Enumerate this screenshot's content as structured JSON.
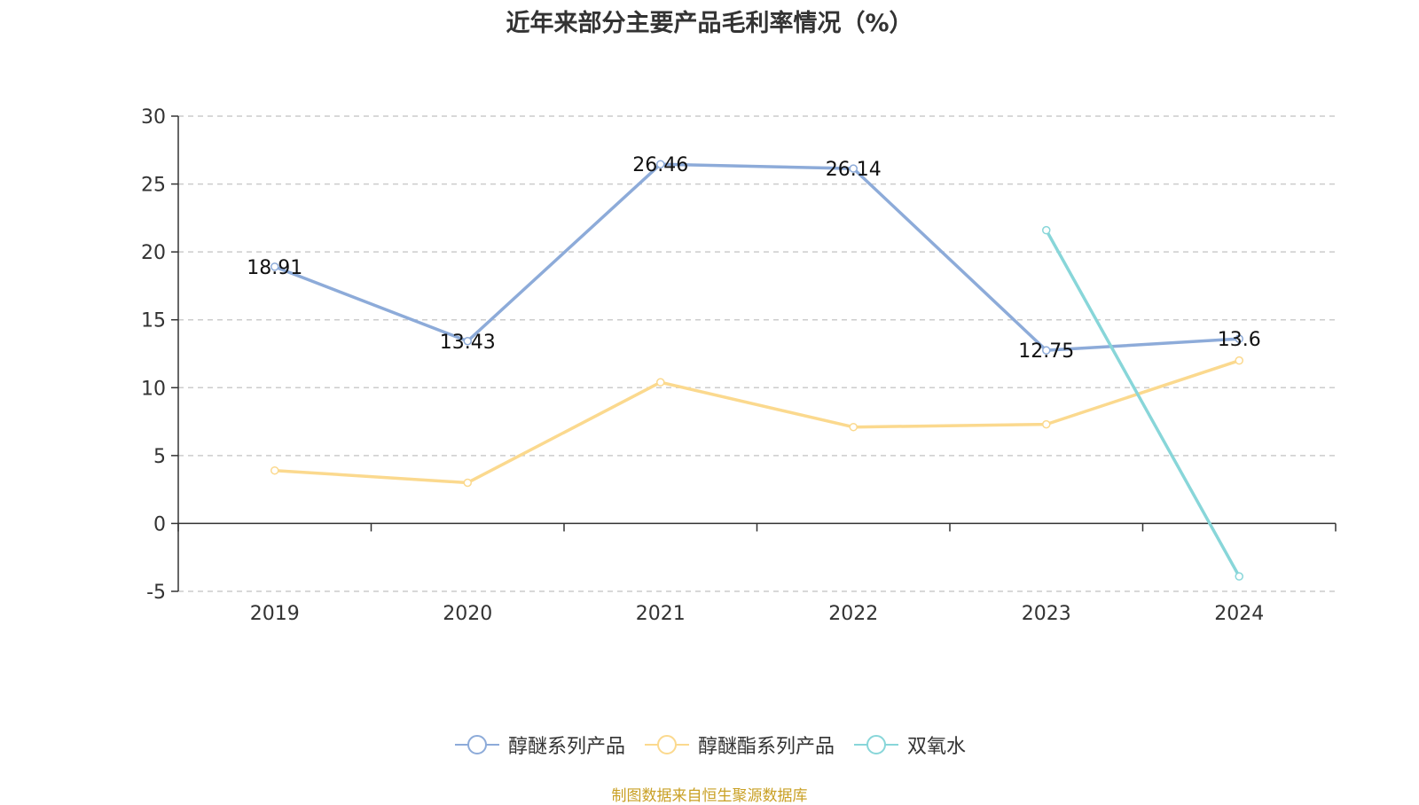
{
  "title": "近年来部分主要产品毛利率情况（%）",
  "source": "制图数据来自恒生聚源数据库",
  "colors": {
    "axis": "#333333",
    "grid": "#cccccc",
    "text": "#333333",
    "source": "#c9a024"
  },
  "chart_data": {
    "type": "line",
    "title": "近年来部分主要产品毛利率情况（%）",
    "categories": [
      "2019",
      "2020",
      "2021",
      "2022",
      "2023",
      "2024"
    ],
    "ylim": [
      -5,
      30
    ],
    "yticks": [
      -5,
      0,
      5,
      10,
      15,
      20,
      25,
      30
    ],
    "grid": true,
    "legend_position": "bottom-center",
    "series": [
      {
        "name": "醇醚系列产品",
        "color": "#8dabd9",
        "values": [
          18.91,
          13.43,
          26.46,
          26.14,
          12.75,
          13.6
        ],
        "labels": [
          "18.91",
          "13.43",
          "26.46",
          "26.14",
          "12.75",
          "13.6"
        ],
        "show_labels": true
      },
      {
        "name": "醇醚酯系列产品",
        "color": "#fbd98e",
        "values": [
          3.9,
          3.0,
          10.4,
          7.1,
          7.3,
          12.0
        ],
        "show_labels": false
      },
      {
        "name": "双氧水",
        "color": "#88d6d9",
        "values": [
          null,
          null,
          null,
          null,
          21.6,
          -3.9
        ],
        "show_labels": false
      }
    ]
  }
}
